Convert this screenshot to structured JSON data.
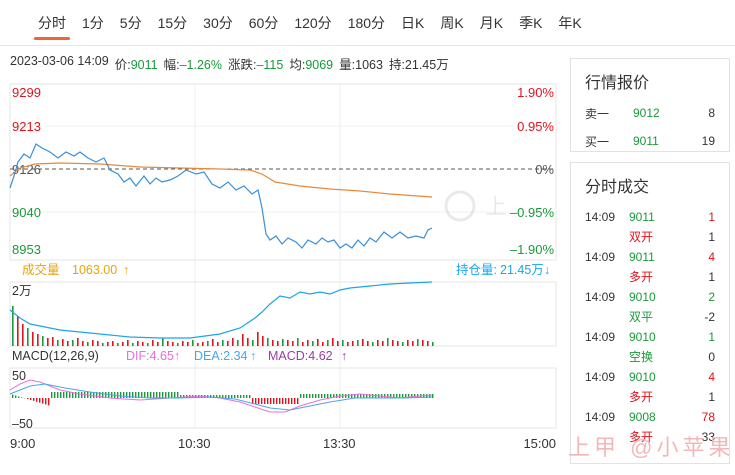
{
  "tabs": [
    "分时",
    "1分",
    "5分",
    "15分",
    "30分",
    "60分",
    "120分",
    "180分",
    "日K",
    "周K",
    "月K",
    "季K",
    "年K"
  ],
  "info": {
    "datetime": "2023-03-06 14:09",
    "price_label": "价:",
    "price": "9011",
    "range_label": "幅:",
    "range": "–1.26%",
    "change_label": "涨跌:",
    "change": "–115",
    "avg_label": "均:",
    "avg": "9069",
    "volume_label": "量:",
    "volume": "1063",
    "hold_label": "持:",
    "hold": "21.45万"
  },
  "price_axis": {
    "left": [
      "9299",
      "9213",
      "9126",
      "9040",
      "8953"
    ],
    "right": [
      "1.90%",
      "0.95%",
      "0%",
      "–0.95%",
      "–1.90%"
    ]
  },
  "volume_panel": {
    "volume_label": "成交量",
    "volume_value": "1063.00",
    "hold_label": "持仓量:",
    "hold_value": "21.45万",
    "axis_top": "2万"
  },
  "macd": {
    "label": "MACD(12,26,9)",
    "dif": "DIF:4.65",
    "dea": "DEA:2.34",
    "macd": "MACD:4.62",
    "axis_top": "50",
    "axis_bottom": "–50"
  },
  "time_axis": [
    "9:00",
    "10:30",
    "13:30",
    "15:00"
  ],
  "side": {
    "quote_title": "行情报价",
    "quotes": [
      {
        "label": "卖一",
        "price": "9012",
        "vol": "8"
      },
      {
        "label": "买一",
        "price": "9011",
        "vol": "19"
      }
    ],
    "trades_title": "分时成交",
    "trades": [
      {
        "time": "14:09",
        "price": "9011",
        "vol": "1",
        "kind": "双开",
        "cnt": "1"
      },
      {
        "time": "14:09",
        "price": "9011",
        "vol": "4",
        "kind": "多开",
        "cnt": "1"
      },
      {
        "time": "14:09",
        "price": "9010",
        "vol": "2",
        "kind": "双平",
        "cnt": "-2"
      },
      {
        "time": "14:09",
        "price": "9010",
        "vol": "1",
        "kind": "空换",
        "cnt": "0"
      },
      {
        "time": "14:09",
        "price": "9010",
        "vol": "4",
        "kind": "多开",
        "cnt": "1"
      },
      {
        "time": "14:09",
        "price": "9008",
        "vol": "78",
        "kind": "多开",
        "cnt": "33"
      }
    ]
  },
  "watermark": "上甲 @小苹果",
  "colors": {
    "up": "#e0141e",
    "down": "#1a9a3a",
    "price_line": "#3a8fd8",
    "avg_line": "#e8893a",
    "dif": "#e86ed8",
    "dea": "#4aa6e8",
    "macd": "#9a3aa8",
    "volume_text": "#e8a40c",
    "hold_text": "#1aa6e8"
  }
}
